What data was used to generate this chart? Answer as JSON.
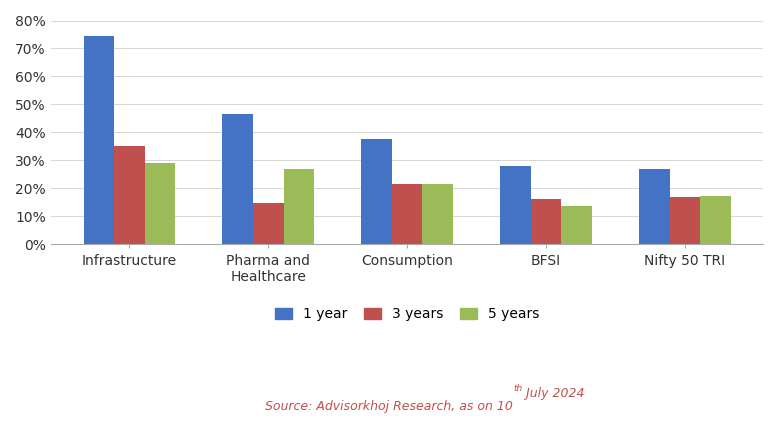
{
  "categories": [
    "Infrastructure",
    "Pharma and\nHealthcare",
    "Consumption",
    "BFSI",
    "Nifty 50 TRI"
  ],
  "series": {
    "1 year": [
      0.745,
      0.465,
      0.375,
      0.28,
      0.27
    ],
    "3 years": [
      0.35,
      0.148,
      0.215,
      0.163,
      0.17
    ],
    "5 years": [
      0.29,
      0.268,
      0.215,
      0.138,
      0.173
    ]
  },
  "colors": {
    "1 year": "#4472C4",
    "3 years": "#C0504D",
    "5 years": "#9BBB59"
  },
  "ylim": [
    0,
    0.8
  ],
  "yticks": [
    0.0,
    0.1,
    0.2,
    0.3,
    0.4,
    0.5,
    0.6,
    0.7,
    0.8
  ],
  "yticklabels": [
    "0%",
    "10%",
    "20%",
    "30%",
    "40%",
    "50%",
    "60%",
    "70%",
    "80%"
  ],
  "bar_width": 0.22,
  "legend_labels": [
    "1 year",
    "3 years",
    "5 years"
  ],
  "source_main": "Source: Advisorkhoj Research, as on 10",
  "source_super": "th",
  "source_end": " July 2024",
  "source_color": "#C0504D",
  "background_color": "#ffffff",
  "figsize": [
    7.78,
    4.32
  ],
  "dpi": 100
}
